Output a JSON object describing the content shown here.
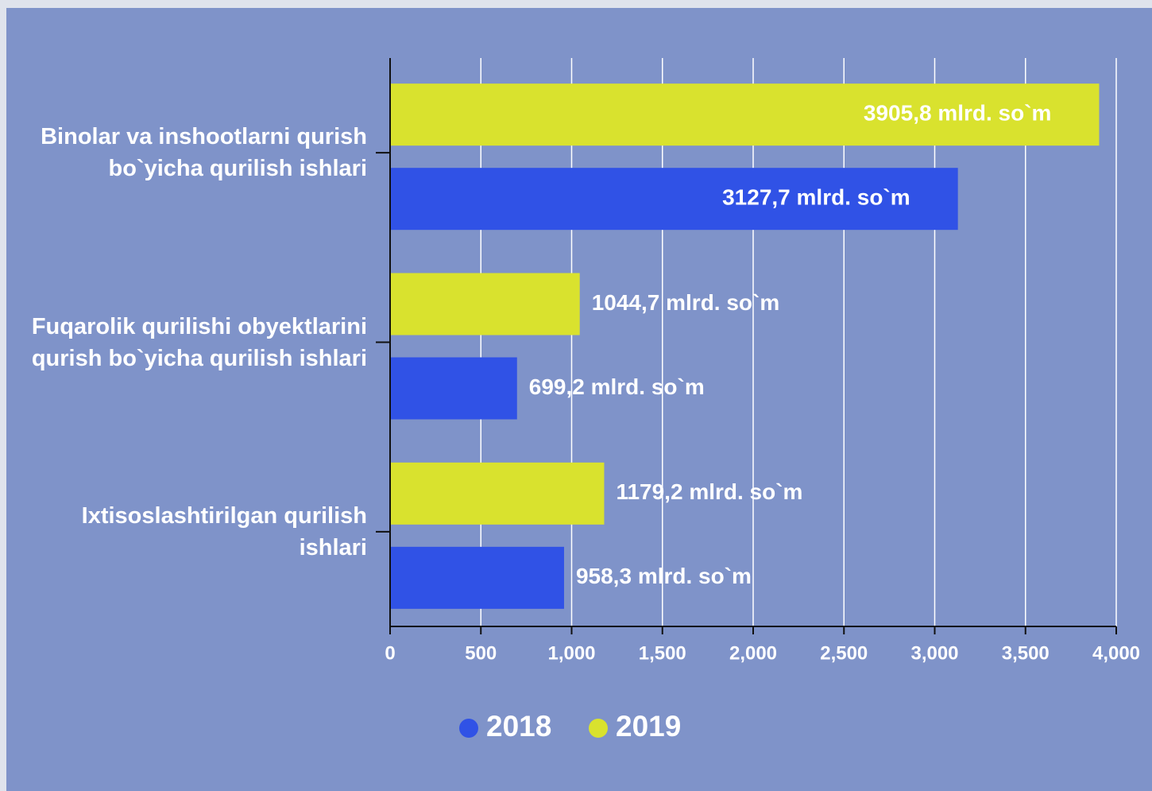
{
  "chart_data": {
    "type": "bar",
    "orientation": "horizontal",
    "categories": [
      "Binolar va inshootlarni qurish bo`yicha qurilish ishlari",
      "Fuqarolik qurilishi obyektlarini qurish bo`yicha qurilish ishlari",
      "Ixtisoslashtirilgan qurilish ishlari"
    ],
    "series": [
      {
        "name": "2018",
        "color": "#3052e6",
        "values": [
          3127.7,
          699.2,
          958.3
        ],
        "value_labels": [
          "3127,7 mlrd. so`m",
          "699,2 mlrd. so`m",
          "958,3 mlrd. so`m"
        ]
      },
      {
        "name": "2019",
        "color": "#d9e22e",
        "values": [
          3905.8,
          1044.7,
          1179.2
        ],
        "value_labels": [
          "3905,8 mlrd. so`m",
          "1044,7 mlrd. so`m",
          "1179,2 mlrd. so`m"
        ]
      }
    ],
    "xlim": [
      0,
      4000
    ],
    "xticks": [
      0,
      500,
      {
        "value": 1000,
        "label": "1,000"
      },
      {
        "value": 1500,
        "label": "1,500"
      },
      {
        "value": 2000,
        "label": "2,000"
      },
      {
        "value": 2500,
        "label": "2,500"
      },
      {
        "value": 3000,
        "label": "3,000"
      },
      {
        "value": 3500,
        "label": "3,500"
      },
      {
        "value": 4000,
        "label": "4,000"
      }
    ],
    "grid": true,
    "legend": "bottom"
  }
}
